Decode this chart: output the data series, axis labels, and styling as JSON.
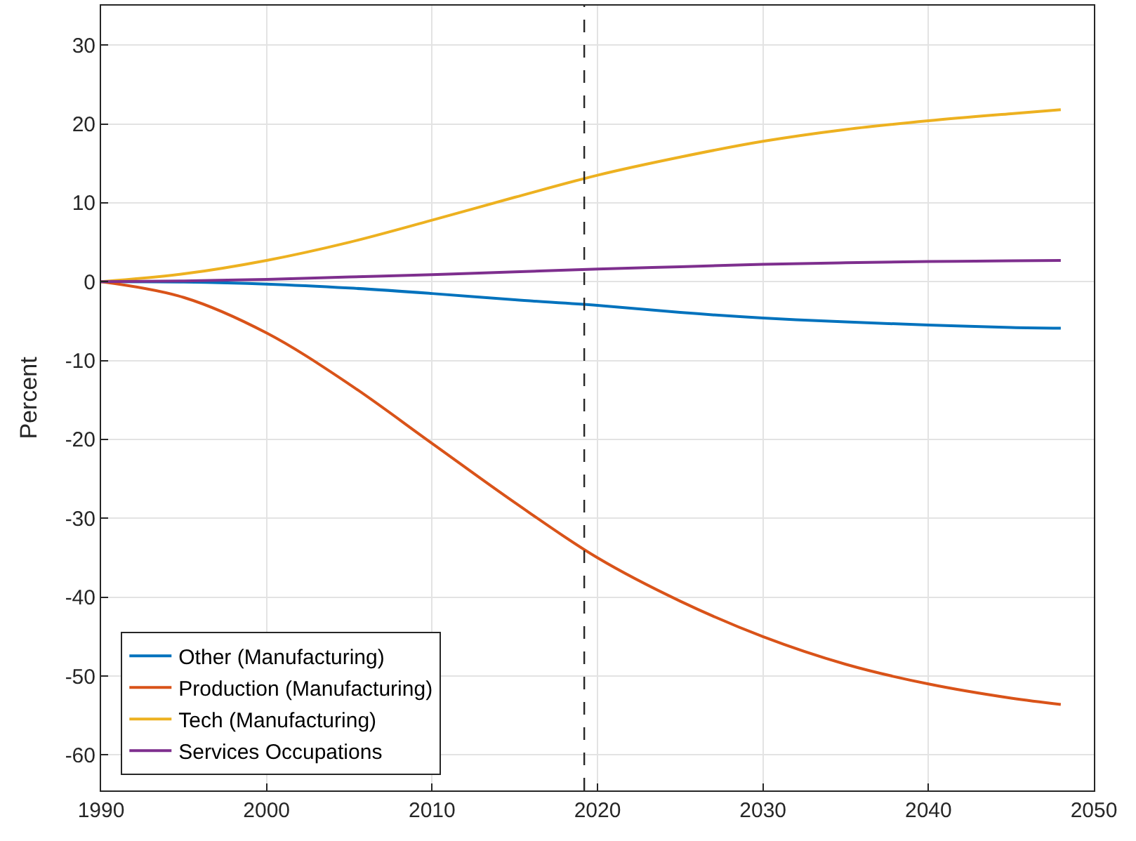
{
  "chart_data": {
    "type": "line",
    "ylabel": "Percent",
    "x": [
      1990,
      1995,
      2000,
      2005,
      2010,
      2015,
      2020,
      2025,
      2030,
      2035,
      2040,
      2045,
      2048
    ],
    "series": [
      {
        "name": "Other (Manufacturing)",
        "color": "#0072bd",
        "values": [
          0,
          -0.05,
          -0.3,
          -0.8,
          -1.5,
          -2.3,
          -3.0,
          -3.9,
          -4.6,
          -5.1,
          -5.5,
          -5.8,
          -5.9
        ]
      },
      {
        "name": "Production (Manufacturing)",
        "color": "#d95319",
        "values": [
          0,
          -2,
          -6.5,
          -13,
          -20.5,
          -28,
          -35,
          -40.5,
          -45,
          -48.5,
          -51,
          -52.8,
          -53.6
        ]
      },
      {
        "name": "Tech (Manufacturing)",
        "color": "#edb120",
        "values": [
          0,
          1,
          2.7,
          5,
          7.8,
          10.7,
          13.5,
          15.8,
          17.8,
          19.3,
          20.4,
          21.3,
          21.8
        ]
      },
      {
        "name": "Services Occupations",
        "color": "#7e2f8e",
        "values": [
          0,
          0.1,
          0.3,
          0.6,
          0.9,
          1.25,
          1.6,
          1.9,
          2.2,
          2.4,
          2.55,
          2.65,
          2.7
        ]
      }
    ],
    "xlim": [
      1990,
      2050
    ],
    "xticks": [
      1990,
      2000,
      2010,
      2020,
      2030,
      2040,
      2050
    ],
    "ylim": [
      -64.5,
      35
    ],
    "yticks": [
      -60,
      -50,
      -40,
      -30,
      -20,
      -10,
      0,
      10,
      20,
      30
    ],
    "ref_lines": [
      {
        "axis": "x",
        "value": 2019.2,
        "color": "#262626",
        "line_style": "dashed"
      }
    ],
    "grid": true,
    "legend": "bottom left",
    "marker": "none",
    "line_style": "solid"
  }
}
